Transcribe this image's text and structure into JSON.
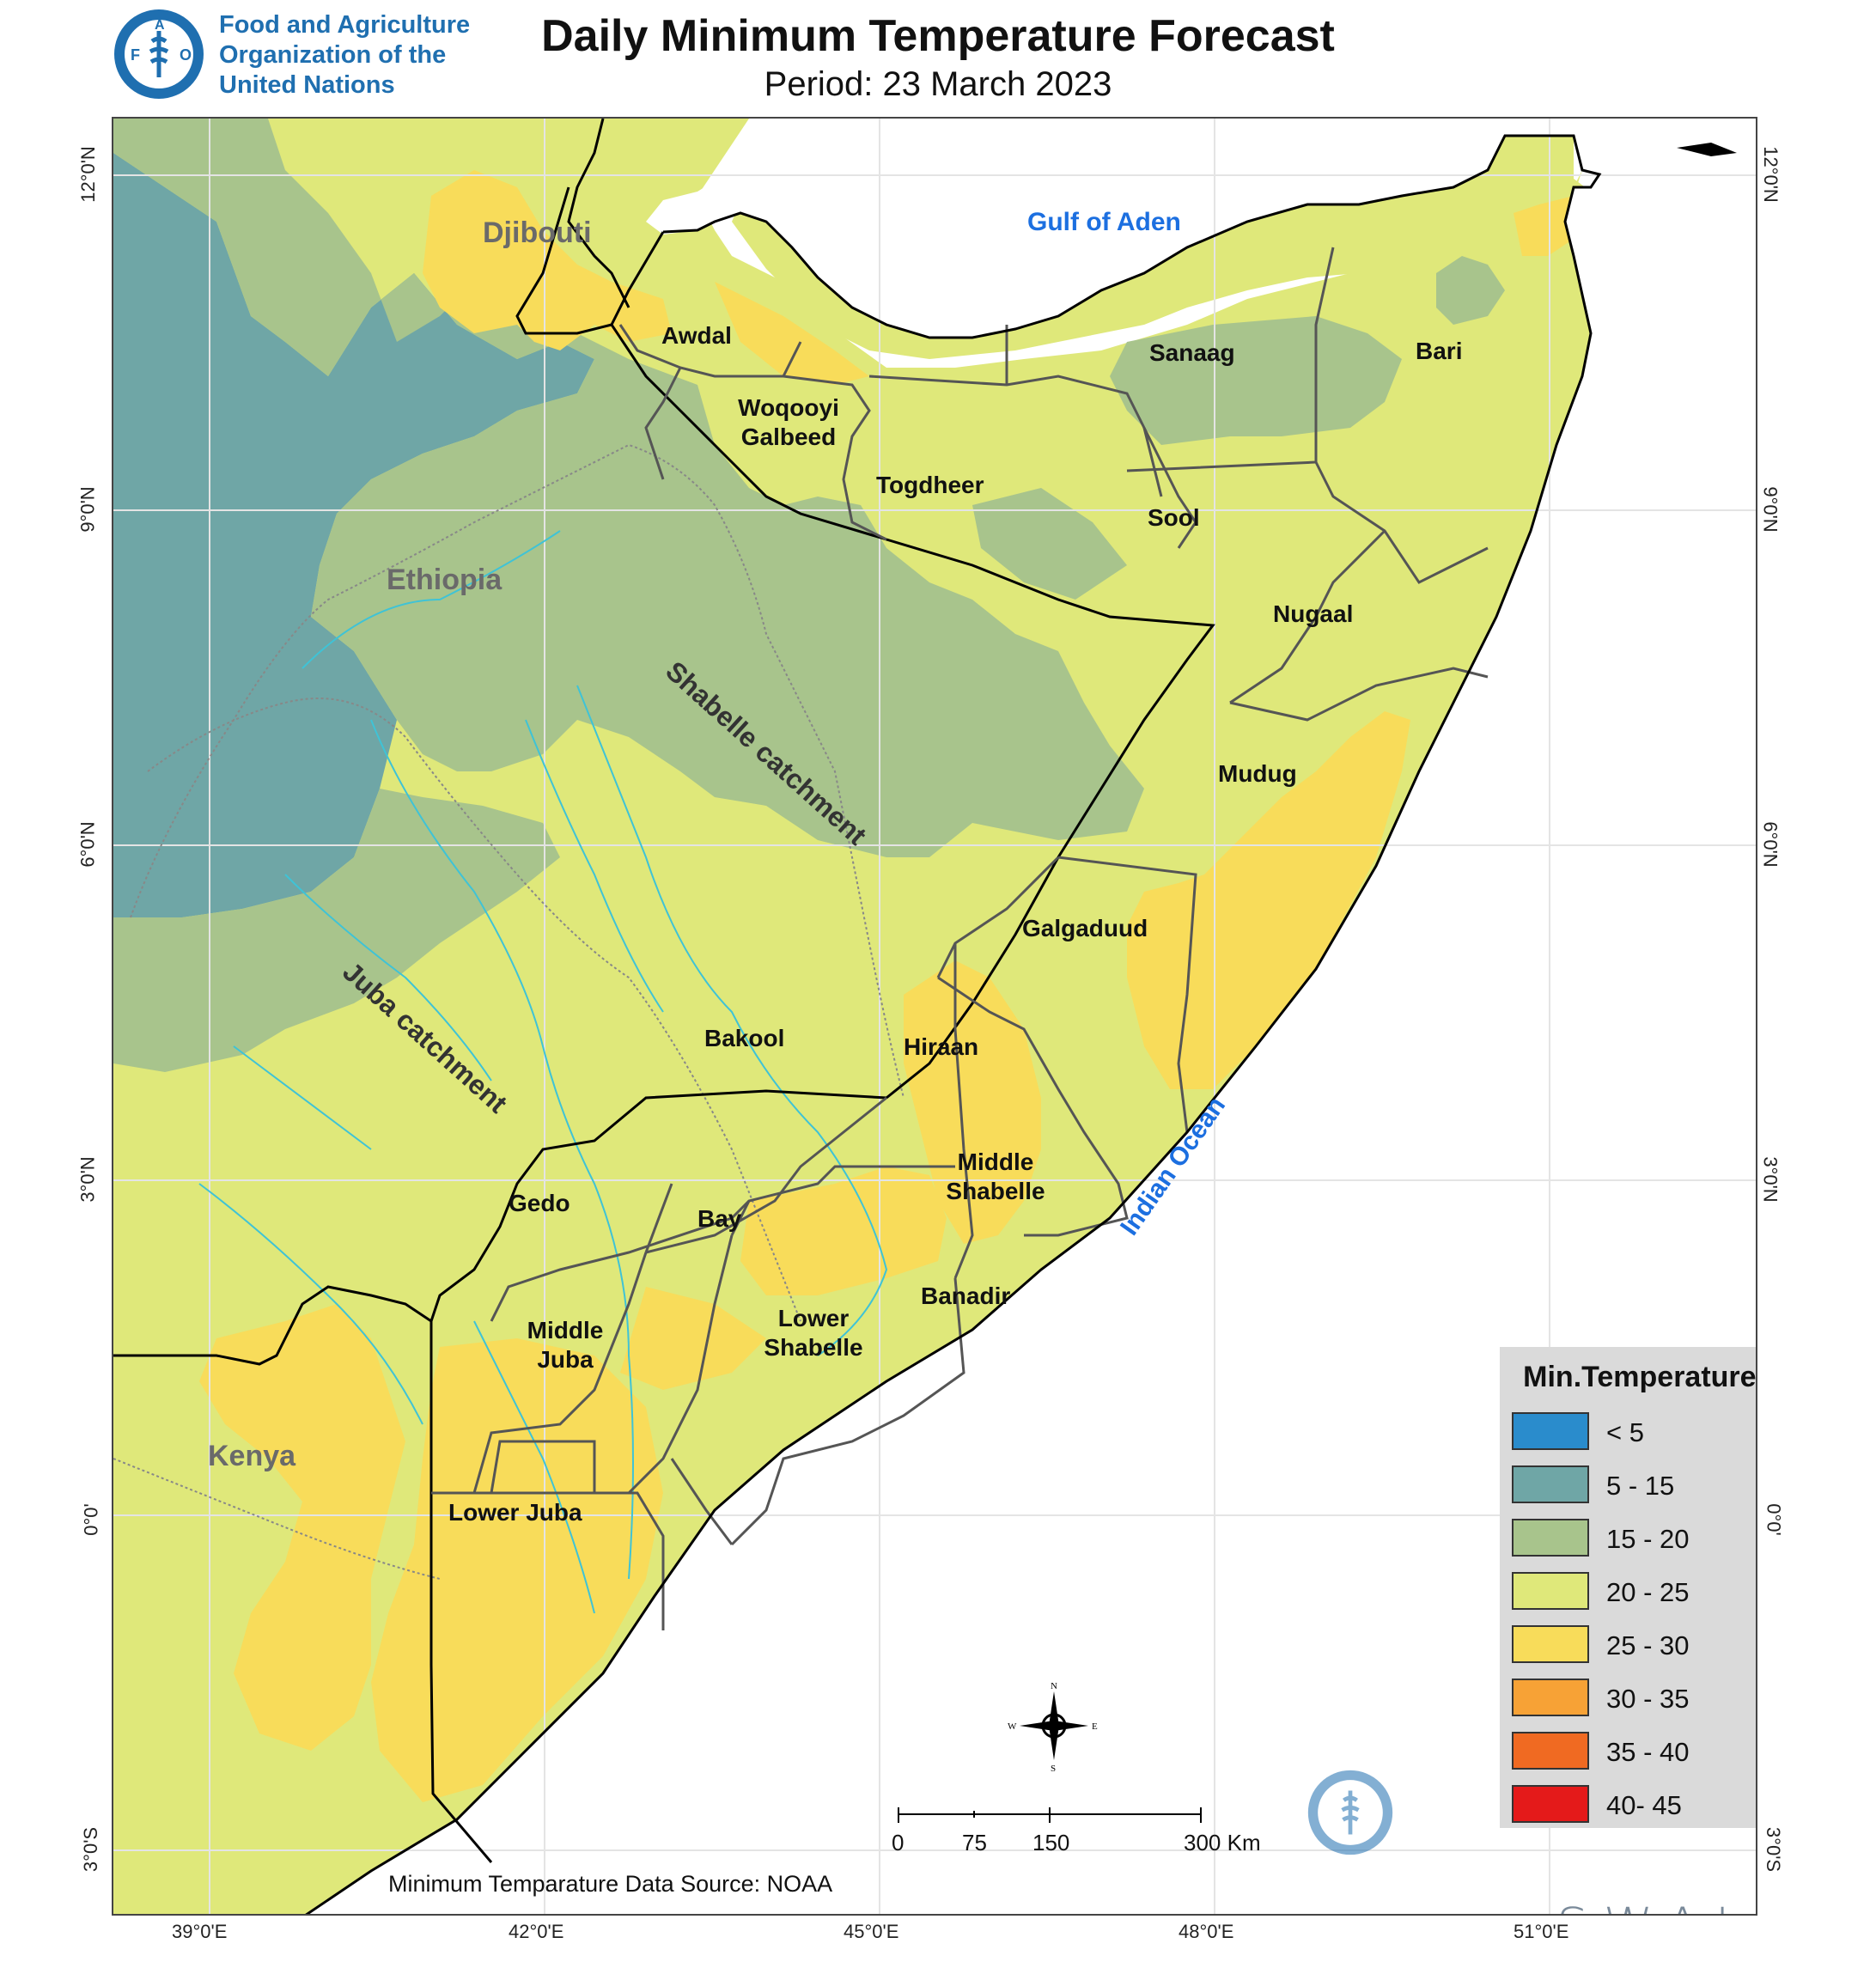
{
  "header": {
    "org_name_lines": [
      "Food and Agriculture",
      "Organization of the",
      "United Nations"
    ],
    "title": "Daily Minimum Temperature Forecast",
    "subtitle": "Period: 23 March 2023"
  },
  "map": {
    "lon_ticks": [
      "39°0'E",
      "42°0'E",
      "45°0'E",
      "48°0'E",
      "51°0'E"
    ],
    "lat_ticks_left": [
      "12°0'N",
      "9°0'N",
      "6°0'N",
      "3°0'N",
      "0°0'",
      "3°0'S"
    ],
    "lat_ticks_right": [
      "12°0'N",
      "9°0'N",
      "6°0'N",
      "3°0'N",
      "0°0'",
      "3°0'S"
    ],
    "regions": [
      "Awdal",
      "Woqooyi Galbeed",
      "Togdheer",
      "Sanaag",
      "Bari",
      "Sool",
      "Nugaal",
      "Mudug",
      "Galgaduud",
      "Hiraan",
      "Bakool",
      "Middle Shabelle",
      "Gedo",
      "Bay",
      "Banadir",
      "Lower Shabelle",
      "Middle Juba",
      "Lower Juba"
    ],
    "countries": [
      "Djibouti",
      "Ethiopia",
      "Kenya"
    ],
    "water_bodies": [
      "Gulf of Aden",
      "Indian Ocean"
    ],
    "catchments": [
      "Shabelle catchment",
      "Juba catchment"
    ],
    "compass": {
      "n": "N",
      "s": "S",
      "e": "E",
      "w": "W"
    },
    "scale_bar": {
      "labels": [
        "0",
        "75",
        "150",
        "300 Km"
      ]
    },
    "source_note": "Minimum Temparature Data Source: NOAA",
    "colors": {
      "sea": "#ffffff",
      "c5_15": "#6fa6a6",
      "c15_20": "#a8c48c",
      "c20_25": "#dfe87a",
      "c25_30": "#f8dc5a",
      "border": "#000000",
      "admin": "#555555",
      "river": "#3fc3d6"
    }
  },
  "legend": {
    "title": "Min.Temperature (C°)",
    "items": [
      {
        "label": "< 5",
        "color": "#2a8ccc"
      },
      {
        "label": "5 - 15",
        "color": "#6fa6a6"
      },
      {
        "label": "15 - 20",
        "color": "#a8c48c"
      },
      {
        "label": "20 - 25",
        "color": "#dfe87a"
      },
      {
        "label": "25 - 30",
        "color": "#f8dc5a"
      },
      {
        "label": "30 - 35",
        "color": "#f7a236"
      },
      {
        "label": "35 - 40",
        "color": "#f06a22"
      },
      {
        "label": "40- 45",
        "color": "#e41a1a"
      }
    ]
  },
  "logos": {
    "fao_top": "FAO",
    "fao_motto": "FIAT PANIS",
    "fao_bottom": "FAO",
    "swalim": "SWALIM"
  }
}
